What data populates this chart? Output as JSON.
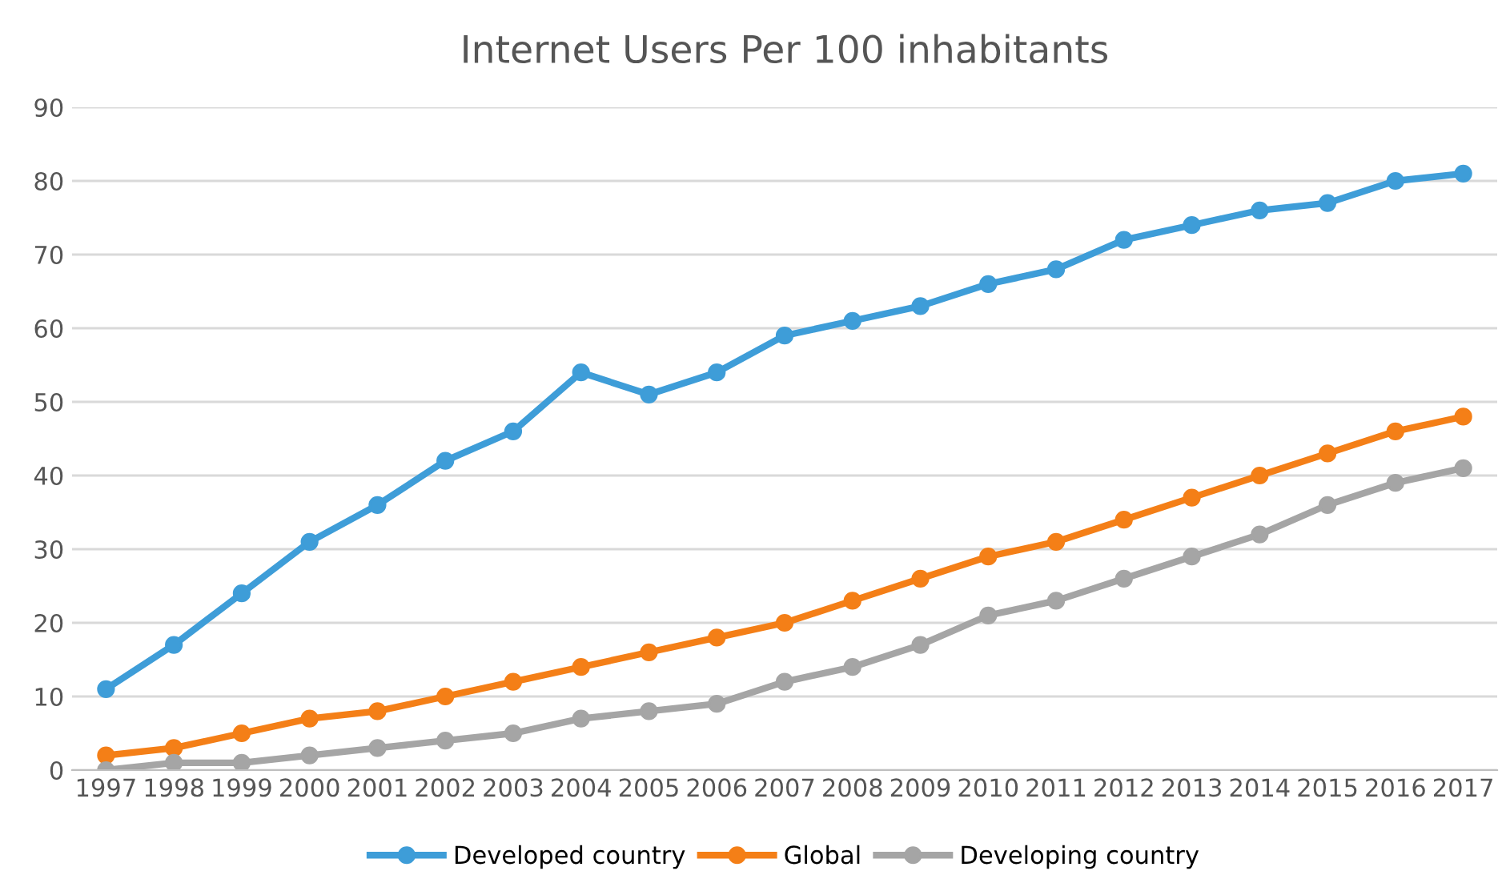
{
  "chart_data": {
    "type": "line",
    "title": "Internet Users Per 100 inhabitants",
    "categories": [
      "1997",
      "1998",
      "1999",
      "2000",
      "2001",
      "2002",
      "2003",
      "2004",
      "2005",
      "2006",
      "2007",
      "2008",
      "2009",
      "2010",
      "2011",
      "2012",
      "2013",
      "2014",
      "2015",
      "2016",
      "2017"
    ],
    "series": [
      {
        "name": "Developed country",
        "color": "#3e9dd8",
        "values": [
          11,
          17,
          24,
          31,
          36,
          42,
          46,
          54,
          51,
          54,
          59,
          61,
          63,
          66,
          68,
          72,
          74,
          76,
          77,
          80,
          81
        ]
      },
      {
        "name": "Global",
        "color": "#f47f17",
        "values": [
          2,
          3,
          5,
          7,
          8,
          10,
          12,
          14,
          16,
          18,
          20,
          23,
          26,
          29,
          31,
          34,
          37,
          40,
          43,
          46,
          48
        ]
      },
      {
        "name": "Developing country",
        "color": "#a5a5a5",
        "values": [
          0,
          1,
          1,
          2,
          3,
          4,
          5,
          7,
          8,
          9,
          12,
          14,
          17,
          21,
          23,
          26,
          29,
          32,
          36,
          39,
          41
        ]
      }
    ],
    "ylim": [
      0,
      90
    ],
    "yticks": [
      0,
      10,
      20,
      30,
      40,
      50,
      60,
      70,
      80,
      90
    ],
    "grid": "y",
    "legend": "bottom",
    "marker": "circle",
    "line_style": "solid"
  }
}
